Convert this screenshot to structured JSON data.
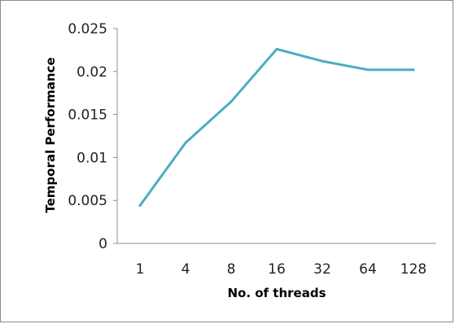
{
  "chart_data": {
    "type": "line",
    "categories": [
      "1",
      "4",
      "8",
      "16",
      "32",
      "64",
      "128"
    ],
    "series": [
      {
        "values": [
          0.0044,
          0.0117,
          0.0165,
          0.0226,
          0.0212,
          0.0202,
          0.0202
        ],
        "color": "#4bacc6"
      }
    ],
    "title": "",
    "xlabel": "No. of threads",
    "ylabel": "Temporal Performance",
    "ylim": [
      0,
      0.025
    ],
    "yticks": [
      "0",
      "0.005",
      "0.01",
      "0.015",
      "0.02",
      "0.025"
    ],
    "grid": false,
    "legend": "none"
  }
}
